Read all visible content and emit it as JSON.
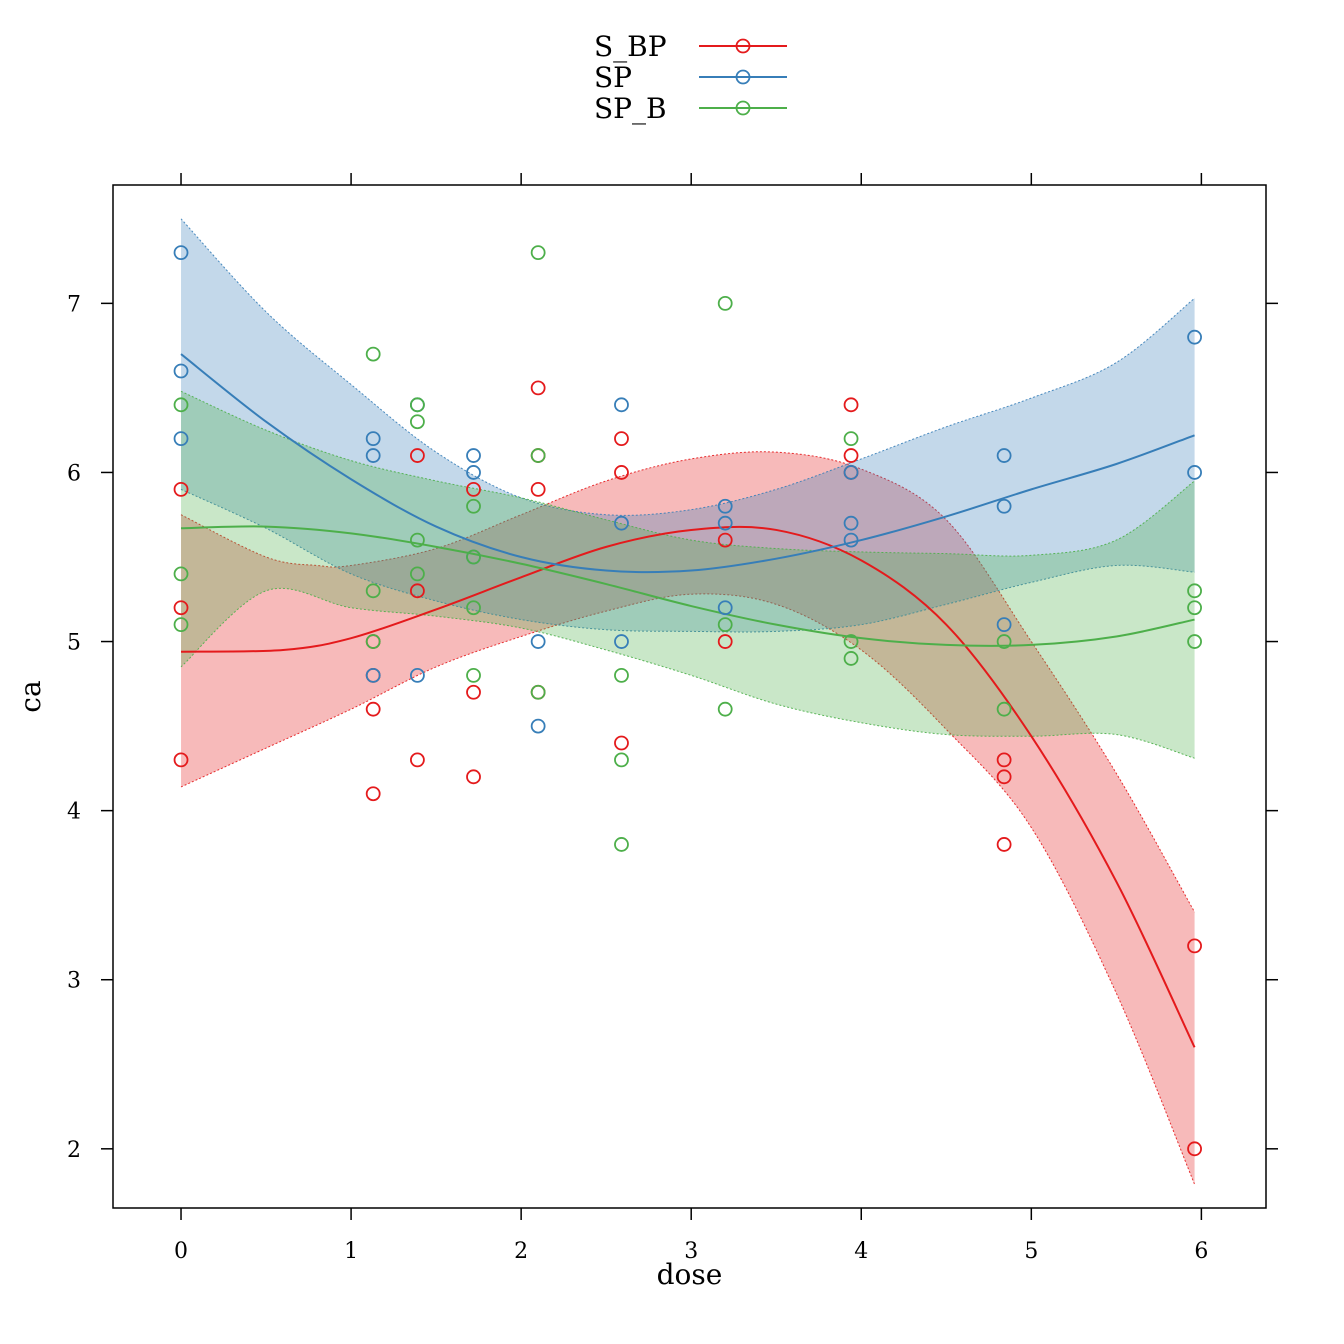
{
  "chart_data": {
    "type": "scatter",
    "xlabel": "dose",
    "ylabel": "ca",
    "xlim": [
      -0.4,
      6.38
    ],
    "ylim": [
      1.65,
      7.7
    ],
    "xticks": [
      0,
      1,
      2,
      3,
      4,
      5,
      6
    ],
    "yticks": [
      2,
      3,
      4,
      5,
      6,
      7
    ],
    "grid": false,
    "legend_position": "top-center",
    "legend": [
      "S_BP",
      "SP",
      "SP_B"
    ],
    "series": [
      {
        "name": "S_BP",
        "color": "#e41a1c",
        "points": [
          [
            0,
            5.9
          ],
          [
            0,
            5.2
          ],
          [
            0,
            4.3
          ],
          [
            1.13,
            4.8
          ],
          [
            1.13,
            4.6
          ],
          [
            1.13,
            4.1
          ],
          [
            1.13,
            5.0
          ],
          [
            1.39,
            6.1
          ],
          [
            1.39,
            5.3
          ],
          [
            1.39,
            4.3
          ],
          [
            1.72,
            5.9
          ],
          [
            1.72,
            4.7
          ],
          [
            1.72,
            4.2
          ],
          [
            2.1,
            6.5
          ],
          [
            2.1,
            6.1
          ],
          [
            2.1,
            5.9
          ],
          [
            2.1,
            4.7
          ],
          [
            2.59,
            6.2
          ],
          [
            2.59,
            6.0
          ],
          [
            2.59,
            4.4
          ],
          [
            3.2,
            5.6
          ],
          [
            3.2,
            5.0
          ],
          [
            3.94,
            6.4
          ],
          [
            3.94,
            6.1
          ],
          [
            3.94,
            6.0
          ],
          [
            4.84,
            4.3
          ],
          [
            4.84,
            4.2
          ],
          [
            4.84,
            3.8
          ],
          [
            5.96,
            3.2
          ],
          [
            5.96,
            2.0
          ]
        ],
        "fit": [
          [
            0,
            4.94
          ],
          [
            0.6,
            4.95
          ],
          [
            1.0,
            5.02
          ],
          [
            1.5,
            5.19
          ],
          [
            2.0,
            5.38
          ],
          [
            2.5,
            5.56
          ],
          [
            3.0,
            5.66
          ],
          [
            3.5,
            5.66
          ],
          [
            4.0,
            5.48
          ],
          [
            4.5,
            5.1
          ],
          [
            5.0,
            4.44
          ],
          [
            5.5,
            3.58
          ],
          [
            5.96,
            2.6
          ]
        ],
        "band_upper": [
          [
            0,
            5.75
          ],
          [
            0.5,
            5.5
          ],
          [
            0.8,
            5.45
          ],
          [
            1.0,
            5.45
          ],
          [
            1.5,
            5.55
          ],
          [
            2.0,
            5.75
          ],
          [
            2.5,
            5.95
          ],
          [
            3.0,
            6.08
          ],
          [
            3.5,
            6.12
          ],
          [
            4.0,
            6.02
          ],
          [
            4.5,
            5.72
          ],
          [
            5.0,
            5.0
          ],
          [
            5.5,
            4.22
          ],
          [
            5.96,
            3.4
          ]
        ],
        "band_lower": [
          [
            0,
            4.14
          ],
          [
            0.5,
            4.37
          ],
          [
            1.0,
            4.6
          ],
          [
            1.5,
            4.85
          ],
          [
            2.0,
            5.03
          ],
          [
            2.5,
            5.18
          ],
          [
            3.0,
            5.28
          ],
          [
            3.5,
            5.22
          ],
          [
            4.0,
            4.95
          ],
          [
            4.5,
            4.48
          ],
          [
            5.0,
            3.9
          ],
          [
            5.5,
            2.92
          ],
          [
            5.96,
            1.79
          ]
        ]
      },
      {
        "name": "SP",
        "color": "#377eb8",
        "points": [
          [
            0,
            7.3
          ],
          [
            0,
            6.6
          ],
          [
            0,
            6.2
          ],
          [
            1.13,
            6.2
          ],
          [
            1.13,
            6.1
          ],
          [
            1.13,
            4.8
          ],
          [
            1.39,
            6.4
          ],
          [
            1.39,
            4.8
          ],
          [
            1.72,
            6.1
          ],
          [
            1.72,
            6.0
          ],
          [
            1.72,
            5.5
          ],
          [
            2.1,
            5.0
          ],
          [
            2.1,
            4.5
          ],
          [
            2.59,
            6.4
          ],
          [
            2.59,
            5.7
          ],
          [
            2.59,
            5.0
          ],
          [
            3.2,
            5.8
          ],
          [
            3.2,
            5.7
          ],
          [
            3.2,
            5.2
          ],
          [
            3.94,
            5.7
          ],
          [
            3.94,
            5.6
          ],
          [
            3.94,
            6.0
          ],
          [
            4.84,
            6.1
          ],
          [
            4.84,
            5.8
          ],
          [
            4.84,
            5.1
          ],
          [
            5.96,
            6.8
          ],
          [
            5.96,
            6.0
          ]
        ],
        "fit": [
          [
            0,
            6.7
          ],
          [
            0.5,
            6.3
          ],
          [
            1.0,
            5.96
          ],
          [
            1.5,
            5.68
          ],
          [
            2.0,
            5.5
          ],
          [
            2.5,
            5.42
          ],
          [
            3.0,
            5.42
          ],
          [
            3.5,
            5.49
          ],
          [
            4.0,
            5.6
          ],
          [
            4.5,
            5.74
          ],
          [
            5.0,
            5.9
          ],
          [
            5.5,
            6.05
          ],
          [
            5.96,
            6.22
          ]
        ],
        "band_upper": [
          [
            0,
            7.5
          ],
          [
            0.5,
            6.95
          ],
          [
            1.0,
            6.52
          ],
          [
            1.5,
            6.12
          ],
          [
            2.0,
            5.85
          ],
          [
            2.5,
            5.75
          ],
          [
            3.0,
            5.78
          ],
          [
            3.5,
            5.9
          ],
          [
            4.0,
            6.08
          ],
          [
            4.5,
            6.27
          ],
          [
            5.0,
            6.44
          ],
          [
            5.5,
            6.65
          ],
          [
            5.96,
            7.03
          ]
        ],
        "band_lower": [
          [
            0,
            5.9
          ],
          [
            0.5,
            5.67
          ],
          [
            1.0,
            5.4
          ],
          [
            1.5,
            5.24
          ],
          [
            2.0,
            5.13
          ],
          [
            2.5,
            5.07
          ],
          [
            3.0,
            5.06
          ],
          [
            3.5,
            5.06
          ],
          [
            4.0,
            5.1
          ],
          [
            4.5,
            5.22
          ],
          [
            5.0,
            5.35
          ],
          [
            5.5,
            5.45
          ],
          [
            5.96,
            5.41
          ]
        ]
      },
      {
        "name": "SP_B",
        "color": "#4daf4a",
        "points": [
          [
            0,
            6.4
          ],
          [
            0,
            5.4
          ],
          [
            0,
            5.1
          ],
          [
            1.13,
            6.7
          ],
          [
            1.13,
            5.3
          ],
          [
            1.13,
            5.0
          ],
          [
            1.39,
            6.4
          ],
          [
            1.39,
            6.3
          ],
          [
            1.39,
            5.6
          ],
          [
            1.39,
            5.4
          ],
          [
            1.72,
            5.8
          ],
          [
            1.72,
            5.5
          ],
          [
            1.72,
            5.2
          ],
          [
            1.72,
            4.8
          ],
          [
            2.1,
            7.3
          ],
          [
            2.1,
            6.1
          ],
          [
            2.1,
            4.7
          ],
          [
            2.59,
            4.8
          ],
          [
            2.59,
            4.3
          ],
          [
            2.59,
            3.8
          ],
          [
            3.2,
            7.0
          ],
          [
            3.2,
            5.1
          ],
          [
            3.2,
            4.6
          ],
          [
            3.94,
            6.2
          ],
          [
            3.94,
            5.0
          ],
          [
            3.94,
            4.9
          ],
          [
            4.84,
            5.0
          ],
          [
            4.84,
            4.6
          ],
          [
            5.96,
            5.3
          ],
          [
            5.96,
            5.2
          ],
          [
            5.96,
            5.0
          ]
        ],
        "fit": [
          [
            0,
            5.67
          ],
          [
            0.5,
            5.68
          ],
          [
            1.0,
            5.64
          ],
          [
            1.5,
            5.56
          ],
          [
            2.0,
            5.46
          ],
          [
            2.5,
            5.34
          ],
          [
            3.0,
            5.21
          ],
          [
            3.5,
            5.1
          ],
          [
            4.0,
            5.02
          ],
          [
            4.5,
            4.98
          ],
          [
            5.0,
            4.98
          ],
          [
            5.5,
            5.03
          ],
          [
            5.96,
            5.13
          ]
        ],
        "band_upper": [
          [
            0,
            6.48
          ],
          [
            0.5,
            6.25
          ],
          [
            1.0,
            6.07
          ],
          [
            1.5,
            5.95
          ],
          [
            2.0,
            5.85
          ],
          [
            2.5,
            5.72
          ],
          [
            3.0,
            5.6
          ],
          [
            3.5,
            5.55
          ],
          [
            4.0,
            5.53
          ],
          [
            4.5,
            5.52
          ],
          [
            5.0,
            5.51
          ],
          [
            5.5,
            5.6
          ],
          [
            5.96,
            5.95
          ]
        ],
        "band_lower": [
          [
            0,
            4.85
          ],
          [
            0.5,
            5.3
          ],
          [
            1.0,
            5.2
          ],
          [
            1.5,
            5.15
          ],
          [
            2.0,
            5.08
          ],
          [
            2.5,
            4.95
          ],
          [
            3.0,
            4.8
          ],
          [
            3.5,
            4.63
          ],
          [
            4.0,
            4.52
          ],
          [
            4.5,
            4.45
          ],
          [
            5.0,
            4.44
          ],
          [
            5.5,
            4.45
          ],
          [
            5.96,
            4.31
          ]
        ]
      }
    ]
  }
}
